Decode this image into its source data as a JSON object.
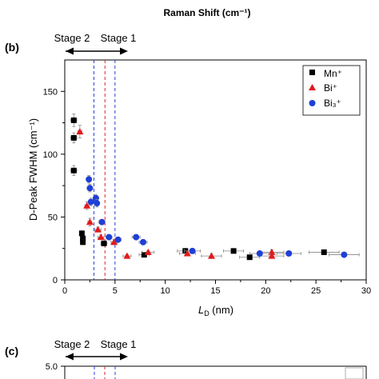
{
  "header_caption": "Raman Shift (cm⁻¹)",
  "panel_b": {
    "panel_label": "(b)",
    "stage_2_label": "Stage 2",
    "stage_1_label": "Stage 1",
    "ylabel": "D-Peak FWHM (cm⁻¹)",
    "xlabel_main": "L",
    "xlabel_sub": "D",
    "xlabel_unit": " (nm)"
  },
  "panel_c": {
    "panel_label": "(c)",
    "stage_2_label": "Stage 2",
    "stage_1_label": "Stage 1",
    "y_top_tick": "5.0"
  },
  "colors": {
    "mn": "#000000",
    "bi": "#e31a1c",
    "bi3": "#1f3fd6",
    "line_blue": "#2b3fd0",
    "line_red": "#d62a2a"
  },
  "chart_data": {
    "type": "scatter",
    "xlim": [
      0,
      30
    ],
    "ylim": [
      0,
      175
    ],
    "xticks": [
      0,
      5,
      10,
      15,
      20,
      25,
      30
    ],
    "yticks": [
      0,
      50,
      100,
      150
    ],
    "grid": false,
    "legend_position": "top-right",
    "vlines": [
      {
        "x": 2.9,
        "color": "line_blue"
      },
      {
        "x": 4.0,
        "color": "line_red"
      },
      {
        "x": 5.0,
        "color": "line_blue"
      }
    ],
    "series": [
      {
        "key": "mn",
        "name": "Mn⁺",
        "marker": "square",
        "points": [
          {
            "x": 0.9,
            "y": 127,
            "xerr": 0.3,
            "yerr": 5
          },
          {
            "x": 0.9,
            "y": 113,
            "xerr": 0.3,
            "yerr": 4
          },
          {
            "x": 0.9,
            "y": 87,
            "xerr": 0.3,
            "yerr": 4
          },
          {
            "x": 1.7,
            "y": 37,
            "xerr": 0.2,
            "yerr": 2
          },
          {
            "x": 1.8,
            "y": 33,
            "xerr": 0.2,
            "yerr": 2
          },
          {
            "x": 1.8,
            "y": 30,
            "xerr": 0.2,
            "yerr": 2
          },
          {
            "x": 3.9,
            "y": 29,
            "xerr": 0.3,
            "yerr": 2
          },
          {
            "x": 7.9,
            "y": 20,
            "xerr": 0.5,
            "yerr": 2
          },
          {
            "x": 12.0,
            "y": 23,
            "xerr": 0.8,
            "yerr": 2
          },
          {
            "x": 16.8,
            "y": 23,
            "xerr": 1.0,
            "yerr": 1
          },
          {
            "x": 18.4,
            "y": 18,
            "xerr": 1.0,
            "yerr": 1
          },
          {
            "x": 25.8,
            "y": 22,
            "xerr": 1.5,
            "yerr": 1
          }
        ]
      },
      {
        "key": "bi",
        "name": "Bi⁺",
        "marker": "triangle",
        "points": [
          {
            "x": 1.5,
            "y": 118,
            "xerr": 0.2,
            "yerr": 5
          },
          {
            "x": 2.2,
            "y": 59,
            "xerr": 0.2,
            "yerr": 3
          },
          {
            "x": 2.5,
            "y": 46,
            "xerr": 0.2,
            "yerr": 3
          },
          {
            "x": 3.3,
            "y": 40,
            "xerr": 0.3,
            "yerr": 2
          },
          {
            "x": 3.6,
            "y": 34,
            "xerr": 0.3,
            "yerr": 2
          },
          {
            "x": 4.9,
            "y": 30,
            "xerr": 0.3,
            "yerr": 2
          },
          {
            "x": 6.2,
            "y": 19,
            "xerr": 0.4,
            "yerr": 1
          },
          {
            "x": 8.3,
            "y": 22,
            "xerr": 0.6,
            "yerr": 1
          },
          {
            "x": 12.2,
            "y": 21,
            "xerr": 0.8,
            "yerr": 2
          },
          {
            "x": 14.6,
            "y": 19,
            "xerr": 1.0,
            "yerr": 2
          },
          {
            "x": 20.6,
            "y": 22,
            "xerr": 1.2,
            "yerr": 2
          },
          {
            "x": 20.6,
            "y": 19,
            "xerr": 1.2,
            "yerr": 1
          }
        ]
      },
      {
        "key": "bi3",
        "name": "Bi₃⁺",
        "marker": "circle",
        "points": [
          {
            "x": 2.4,
            "y": 80,
            "xerr": 0.2,
            "yerr": 3
          },
          {
            "x": 2.5,
            "y": 73,
            "xerr": 0.2,
            "yerr": 3
          },
          {
            "x": 3.1,
            "y": 65,
            "xerr": 0.2,
            "yerr": 3
          },
          {
            "x": 3.2,
            "y": 61,
            "xerr": 0.2,
            "yerr": 3
          },
          {
            "x": 2.6,
            "y": 62,
            "xerr": 0.2,
            "yerr": 3
          },
          {
            "x": 3.7,
            "y": 46,
            "xerr": 0.3,
            "yerr": 2
          },
          {
            "x": 4.4,
            "y": 34,
            "xerr": 0.3,
            "yerr": 2
          },
          {
            "x": 5.3,
            "y": 32,
            "xerr": 0.3,
            "yerr": 2
          },
          {
            "x": 7.1,
            "y": 34,
            "xerr": 0.4,
            "yerr": 2
          },
          {
            "x": 7.8,
            "y": 30,
            "xerr": 0.4,
            "yerr": 2
          },
          {
            "x": 12.7,
            "y": 23,
            "xerr": 0.8,
            "yerr": 1
          },
          {
            "x": 19.4,
            "y": 21,
            "xerr": 1.0,
            "yerr": 1
          },
          {
            "x": 22.3,
            "y": 21,
            "xerr": 1.2,
            "yerr": 1
          },
          {
            "x": 27.8,
            "y": 20,
            "xerr": 1.5,
            "yerr": 1
          }
        ]
      }
    ]
  }
}
